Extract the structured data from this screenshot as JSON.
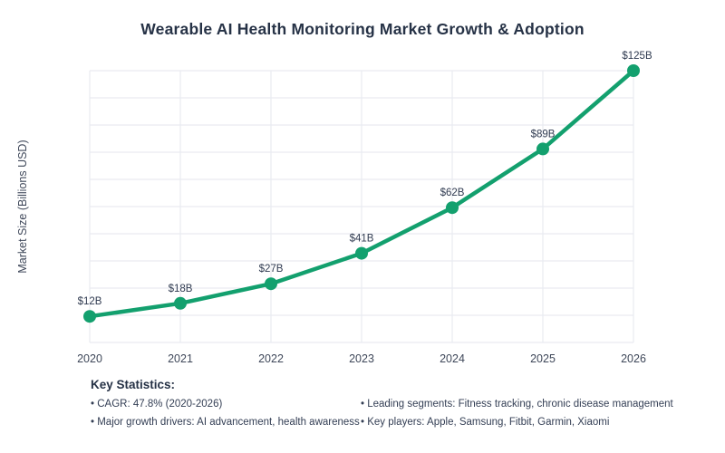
{
  "chart_data": {
    "type": "line",
    "title": "Wearable AI Health Monitoring Market Growth & Adoption",
    "x": [
      "2020",
      "2021",
      "2022",
      "2023",
      "2024",
      "2025",
      "2026"
    ],
    "series": [
      {
        "name": "Market Size",
        "values": [
          12,
          18,
          27,
          41,
          62,
          89,
          125
        ],
        "point_labels": [
          "$12B",
          "$18B",
          "$27B",
          "$41B",
          "$62B",
          "$89B",
          "$125B"
        ]
      }
    ],
    "xlabel": "",
    "ylabel": "Market Size (Billions USD)",
    "ylim": [
      0,
      125
    ],
    "grid": true,
    "legend": "none",
    "marker": "circle"
  },
  "stats": {
    "heading": "Key Statistics:",
    "left": [
      "• CAGR: 47.8% (2020-2026)",
      "• Major growth drivers: AI advancement, health awareness"
    ],
    "right": [
      "• Leading segments: Fitness tracking, chronic disease management",
      "• Key players: Apple, Samsung, Fitbit, Garmin, Xiaomi"
    ]
  },
  "colors": {
    "line": "#13a06e",
    "marker": "#13a06e",
    "grid": "#e9ebf1",
    "title": "#263246",
    "point_label": "#2f3a50",
    "tick_label": "#3e4759",
    "stats_text": "#333e54",
    "background": "#ffffff"
  }
}
